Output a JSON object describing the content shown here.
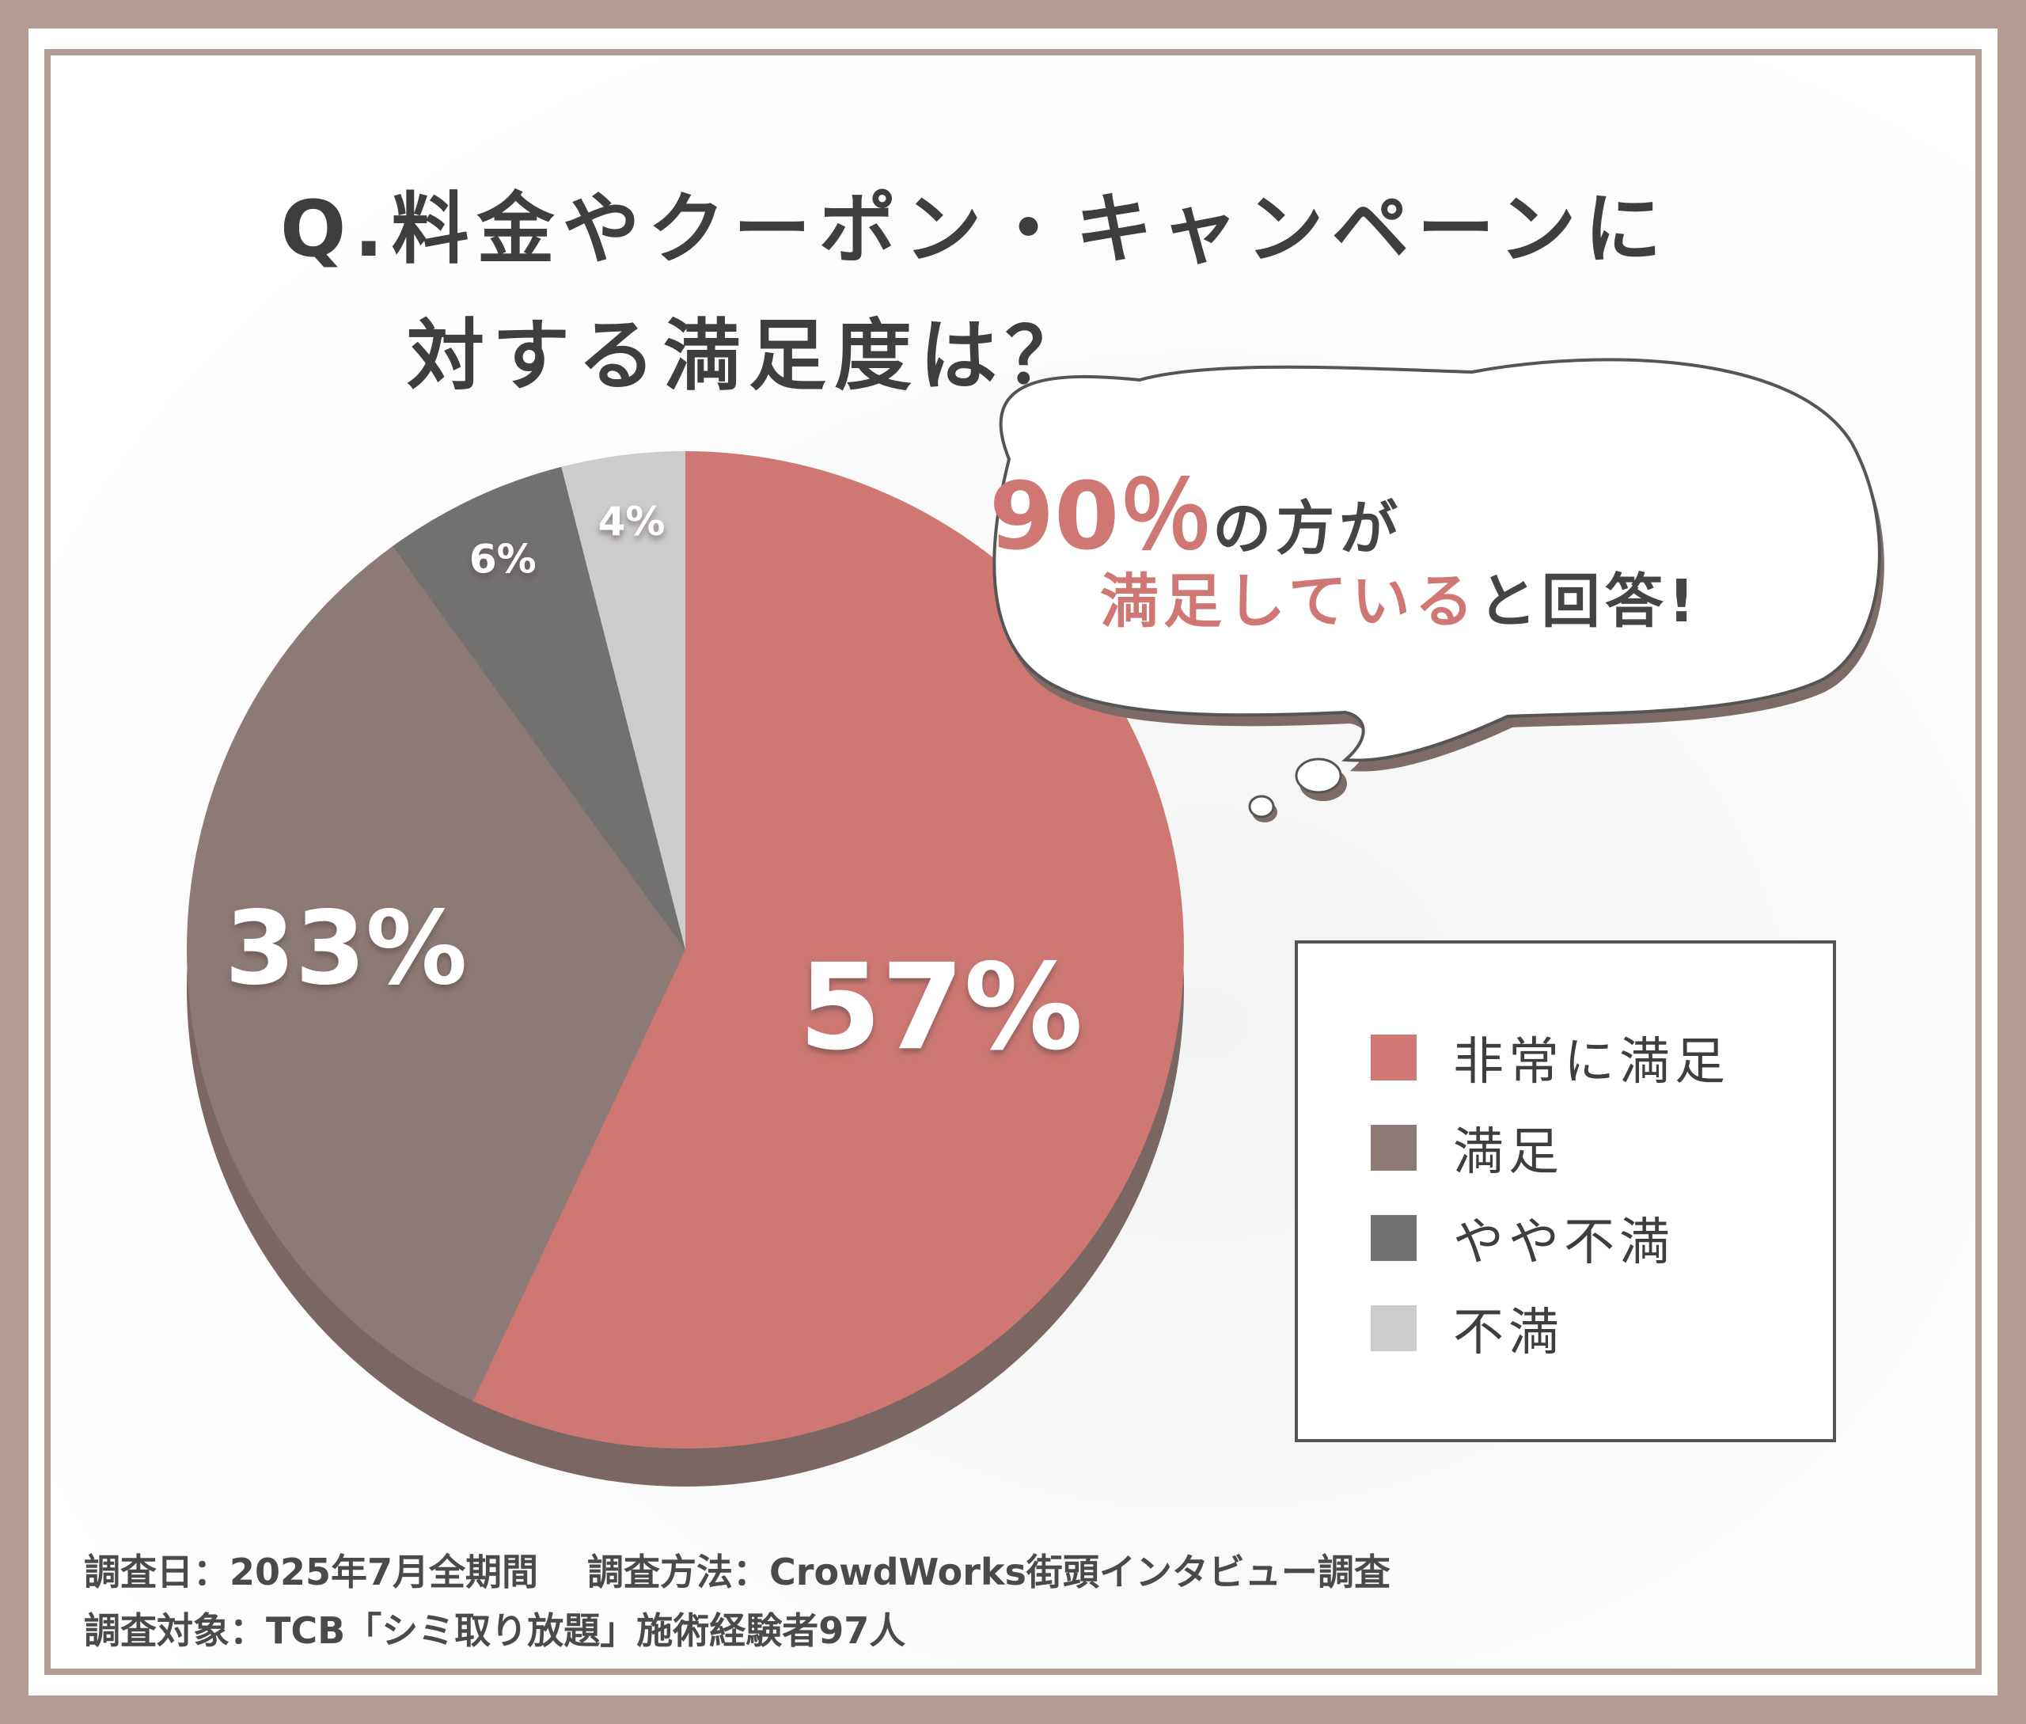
{
  "title": {
    "line1": "Q.料金やクーポン・キャンペーンに",
    "line2": "対する満足度は？"
  },
  "callout": {
    "pct": "90％",
    "text1_tail": "の方が",
    "accent2": "満足している",
    "text2_tail": "と回答!"
  },
  "chart_data": {
    "type": "pie",
    "title": "Q.料金やクーポン・キャンペーンに対する満足度は？",
    "categories": [
      "非常に満足",
      "満足",
      "やや不満",
      "不満"
    ],
    "values": [
      57,
      33,
      6,
      4
    ],
    "labels": [
      "57%",
      "33%",
      "6%",
      "4%"
    ],
    "colors": [
      "#cf7873",
      "#8c7a76",
      "#737070",
      "#cccccc"
    ],
    "legend_position": "right",
    "start": "12 o'clock, clockwise"
  },
  "legend": {
    "items": [
      {
        "label": "非常に満足",
        "color": "#cf7873"
      },
      {
        "label": "満足",
        "color": "#8c7a76"
      },
      {
        "label": "やや不満",
        "color": "#737070"
      },
      {
        "label": "不満",
        "color": "#cccccc"
      }
    ]
  },
  "footer": {
    "line1": "調査日：2025年7月全期間　 調査方法：CrowdWorks街頭インタビュー調査",
    "line2": "調査対象：TCB「シミ取り放題」施術経験者97人"
  },
  "colors": {
    "frame": "#b29b93",
    "accent": "#cf7873",
    "text": "#3e3e3e"
  }
}
